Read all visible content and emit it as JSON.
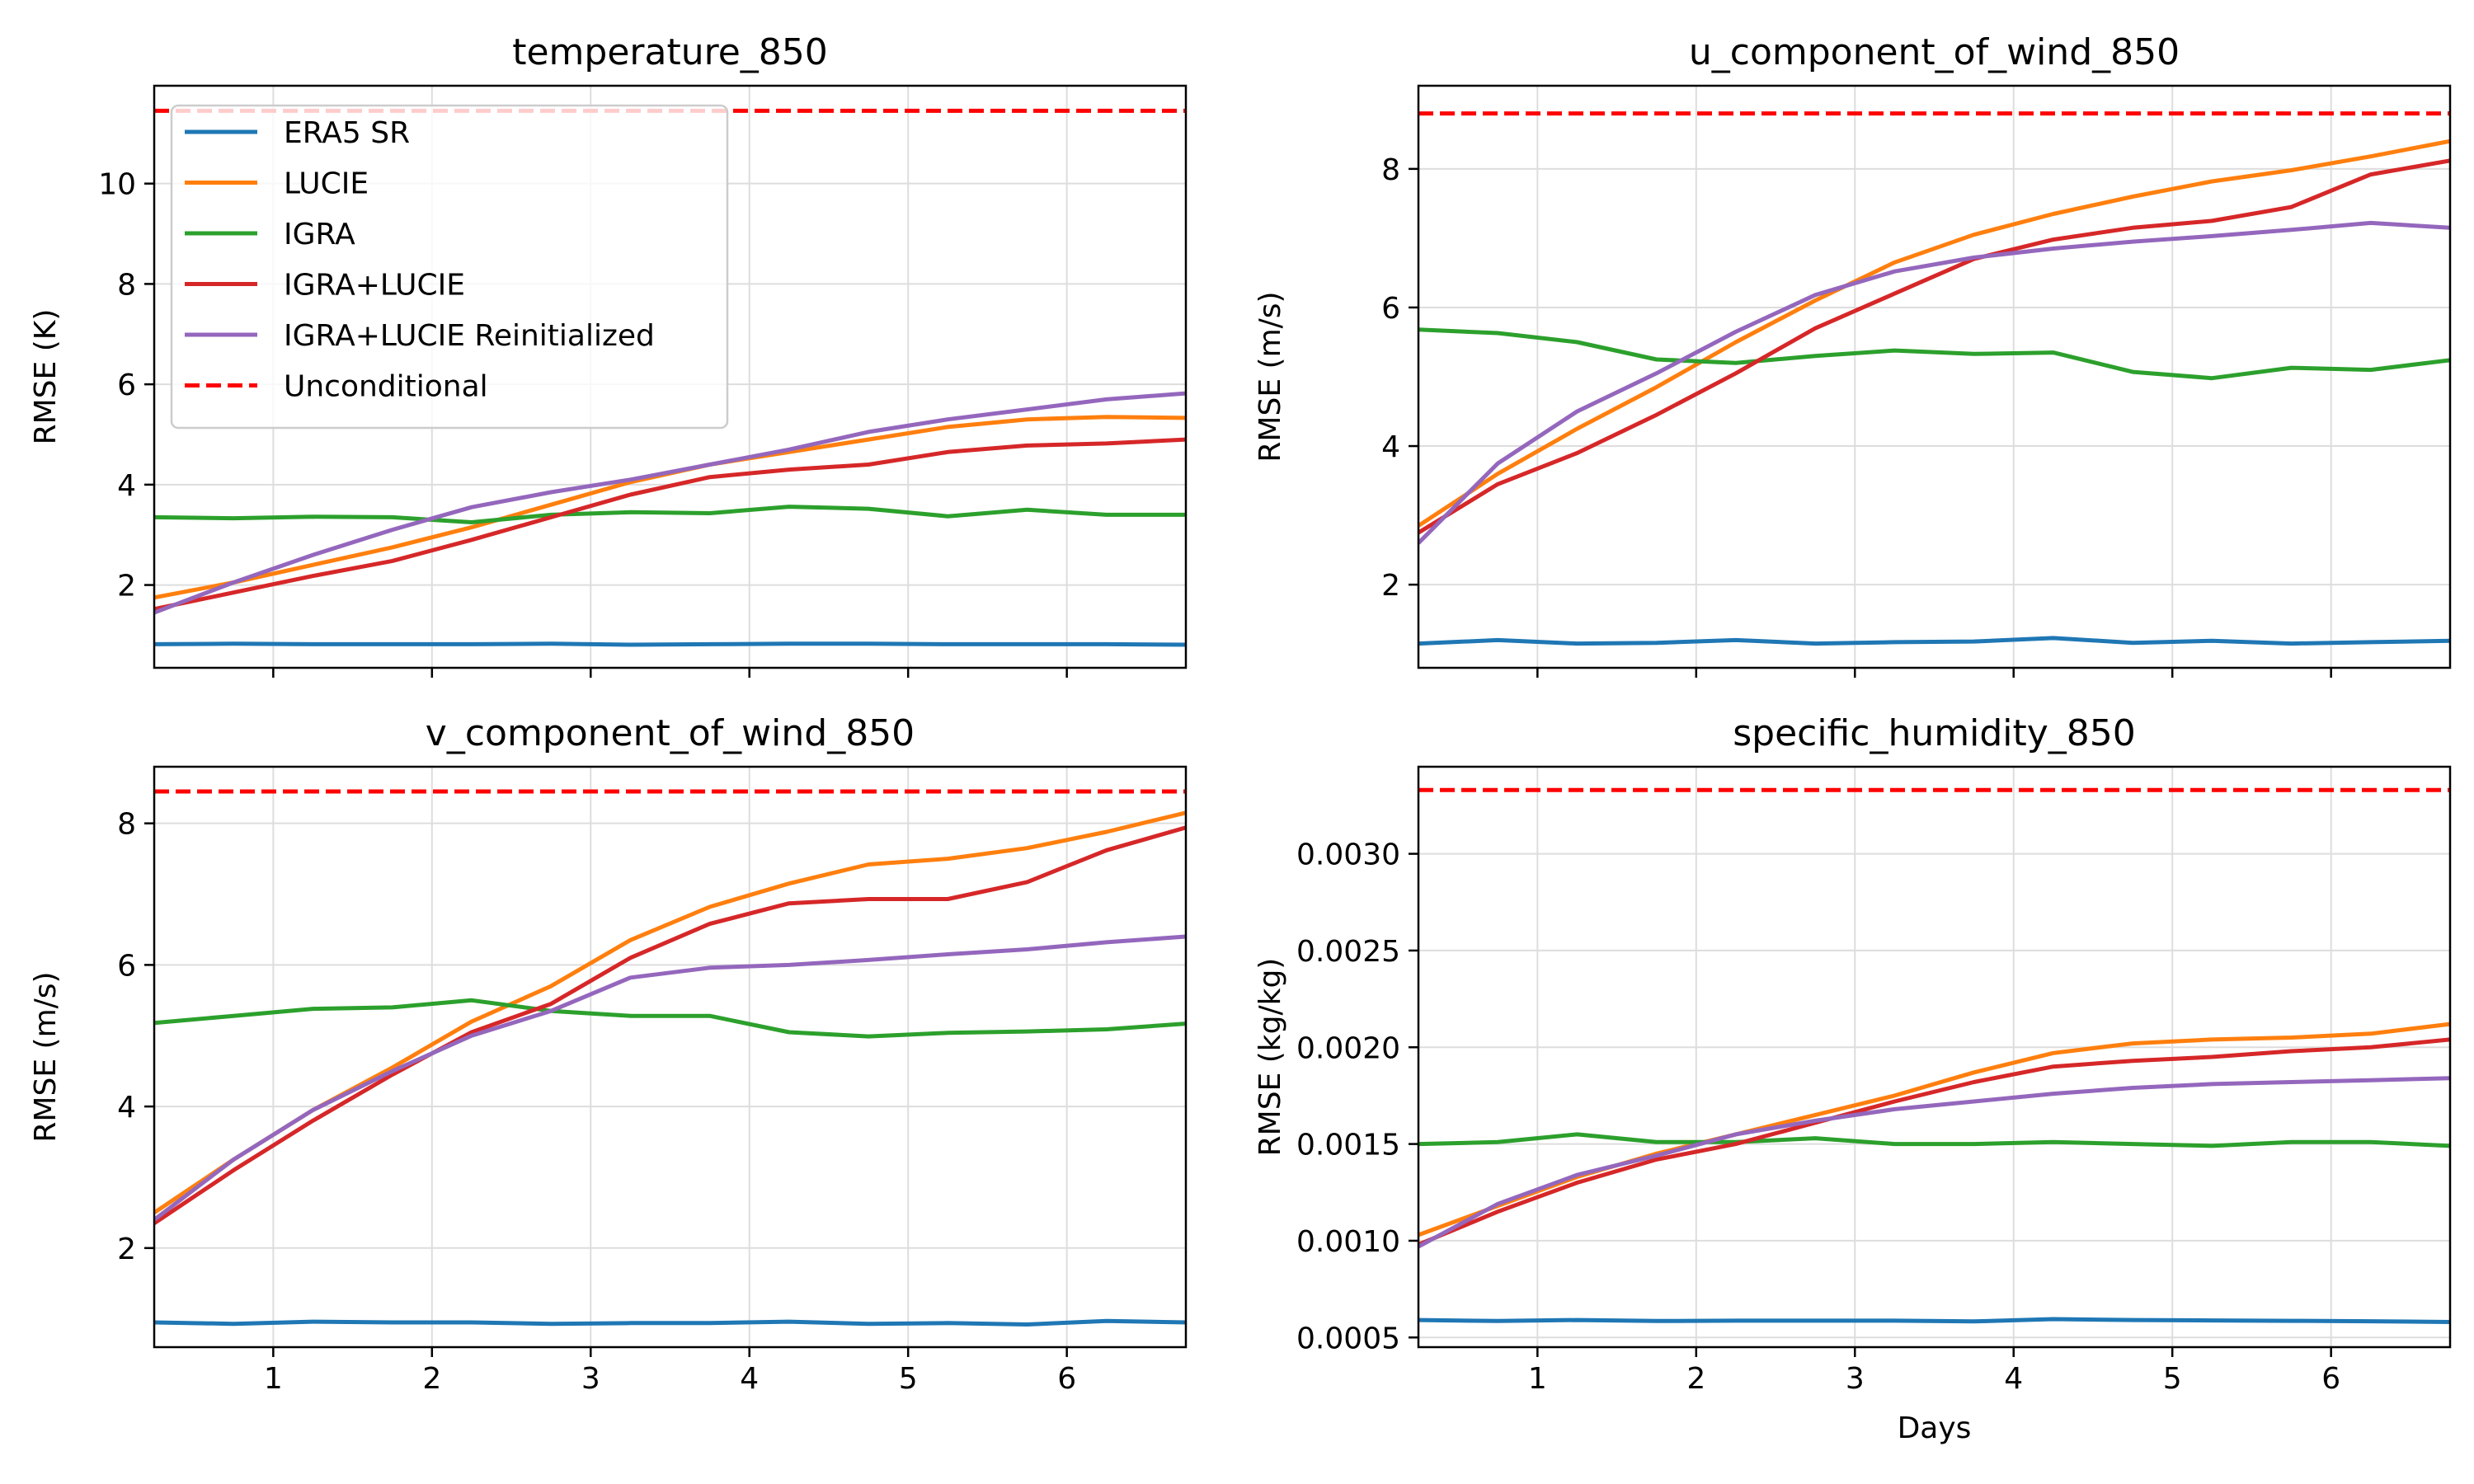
{
  "colors": {
    "ERA5 SR": "#1f77b4",
    "LUCIE": "#ff7f0e",
    "IGRA": "#2ca02c",
    "IGRA+LUCIE": "#d62728",
    "IGRA+LUCIE Reinitialized": "#9467bd",
    "Unconditional": "#ff0000"
  },
  "legend": {
    "entries": [
      "ERA5 SR",
      "LUCIE",
      "IGRA",
      "IGRA+LUCIE",
      "IGRA+LUCIE Reinitialized",
      "Unconditional"
    ]
  },
  "chart_data": [
    {
      "type": "line",
      "title": "temperature_850",
      "xlabel": "",
      "ylabel": "RMSE (K)",
      "xlim": [
        0.25,
        6.75
      ],
      "ylim": [
        0.35,
        11.95
      ],
      "xticks": [
        1,
        2,
        3,
        4,
        5,
        6
      ],
      "yticks": [
        2,
        4,
        6,
        8,
        10
      ],
      "ytick_labels": [
        "2",
        "4",
        "6",
        "8",
        "10"
      ],
      "show_xtick_labels": false,
      "x": [
        0.25,
        0.75,
        1.25,
        1.75,
        2.25,
        2.75,
        3.25,
        3.75,
        4.25,
        4.75,
        5.25,
        5.75,
        6.25,
        6.75
      ],
      "series": [
        {
          "name": "ERA5 SR",
          "values": [
            0.82,
            0.83,
            0.82,
            0.82,
            0.82,
            0.83,
            0.81,
            0.82,
            0.83,
            0.83,
            0.82,
            0.82,
            0.82,
            0.81
          ]
        },
        {
          "name": "LUCIE",
          "values": [
            1.75,
            2.05,
            2.4,
            2.75,
            3.15,
            3.6,
            4.05,
            4.4,
            4.65,
            4.9,
            5.15,
            5.3,
            5.35,
            5.33
          ]
        },
        {
          "name": "IGRA",
          "values": [
            3.35,
            3.33,
            3.36,
            3.35,
            3.25,
            3.4,
            3.45,
            3.43,
            3.56,
            3.52,
            3.37,
            3.5,
            3.4,
            3.4
          ]
        },
        {
          "name": "IGRA+LUCIE",
          "values": [
            1.52,
            1.85,
            2.18,
            2.48,
            2.9,
            3.35,
            3.8,
            4.15,
            4.3,
            4.4,
            4.65,
            4.78,
            4.82,
            4.9
          ]
        },
        {
          "name": "IGRA+LUCIE Reinitialized",
          "values": [
            1.45,
            2.05,
            2.6,
            3.1,
            3.55,
            3.85,
            4.1,
            4.4,
            4.7,
            5.05,
            5.3,
            5.5,
            5.7,
            5.82
          ]
        },
        {
          "name": "Unconditional",
          "values": [
            11.45,
            11.45
          ],
          "x": [
            0.25,
            6.75
          ],
          "dashed": true
        }
      ],
      "legend_position": "upper-left"
    },
    {
      "type": "line",
      "title": "u_component_of_wind_850",
      "xlabel": "",
      "ylabel": "RMSE (m/s)",
      "xlim": [
        0.25,
        6.75
      ],
      "ylim": [
        0.8,
        9.2
      ],
      "xticks": [
        1,
        2,
        3,
        4,
        5,
        6
      ],
      "yticks": [
        2,
        4,
        6,
        8
      ],
      "ytick_labels": [
        "2",
        "4",
        "6",
        "8"
      ],
      "show_xtick_labels": false,
      "x": [
        0.25,
        0.75,
        1.25,
        1.75,
        2.25,
        2.75,
        3.25,
        3.75,
        4.25,
        4.75,
        5.25,
        5.75,
        6.25,
        6.75
      ],
      "series": [
        {
          "name": "ERA5 SR",
          "values": [
            1.15,
            1.2,
            1.15,
            1.16,
            1.2,
            1.15,
            1.17,
            1.18,
            1.23,
            1.16,
            1.19,
            1.15,
            1.17,
            1.19
          ]
        },
        {
          "name": "LUCIE",
          "values": [
            2.85,
            3.6,
            4.25,
            4.85,
            5.5,
            6.1,
            6.65,
            7.05,
            7.35,
            7.6,
            7.82,
            7.98,
            8.18,
            8.4
          ]
        },
        {
          "name": "IGRA",
          "values": [
            5.68,
            5.63,
            5.5,
            5.25,
            5.2,
            5.3,
            5.38,
            5.33,
            5.35,
            5.07,
            4.98,
            5.13,
            5.1,
            5.24
          ]
        },
        {
          "name": "IGRA+LUCIE",
          "values": [
            2.75,
            3.45,
            3.9,
            4.45,
            5.05,
            5.7,
            6.2,
            6.7,
            6.98,
            7.15,
            7.25,
            7.45,
            7.92,
            8.12
          ]
        },
        {
          "name": "IGRA+LUCIE Reinitialized",
          "values": [
            2.6,
            3.75,
            4.5,
            5.05,
            5.65,
            6.18,
            6.52,
            6.72,
            6.85,
            6.95,
            7.03,
            7.12,
            7.22,
            7.15
          ]
        },
        {
          "name": "Unconditional",
          "values": [
            8.8,
            8.8
          ],
          "x": [
            0.25,
            6.75
          ],
          "dashed": true
        }
      ]
    },
    {
      "type": "line",
      "title": "v_component_of_wind_850",
      "xlabel": "",
      "ylabel": "RMSE (m/s)",
      "xlim": [
        0.25,
        6.75
      ],
      "ylim": [
        0.6,
        8.8
      ],
      "xticks": [
        1,
        2,
        3,
        4,
        5,
        6
      ],
      "yticks": [
        2,
        4,
        6,
        8
      ],
      "ytick_labels": [
        "2",
        "4",
        "6",
        "8"
      ],
      "show_xtick_labels": true,
      "xtick_labels": [
        "1",
        "2",
        "3",
        "4",
        "5",
        "6"
      ],
      "x": [
        0.25,
        0.75,
        1.25,
        1.75,
        2.25,
        2.75,
        3.25,
        3.75,
        4.25,
        4.75,
        5.25,
        5.75,
        6.25,
        6.75
      ],
      "series": [
        {
          "name": "ERA5 SR",
          "values": [
            0.95,
            0.93,
            0.96,
            0.95,
            0.95,
            0.93,
            0.94,
            0.94,
            0.96,
            0.93,
            0.94,
            0.92,
            0.97,
            0.95
          ]
        },
        {
          "name": "LUCIE",
          "values": [
            2.5,
            3.25,
            3.95,
            4.55,
            5.2,
            5.7,
            6.35,
            6.82,
            7.15,
            7.42,
            7.5,
            7.65,
            7.88,
            8.15
          ]
        },
        {
          "name": "IGRA",
          "values": [
            5.18,
            5.28,
            5.38,
            5.4,
            5.5,
            5.35,
            5.28,
            5.28,
            5.05,
            4.99,
            5.04,
            5.06,
            5.09,
            5.17
          ]
        },
        {
          "name": "IGRA+LUCIE",
          "values": [
            2.35,
            3.1,
            3.8,
            4.45,
            5.05,
            5.45,
            6.1,
            6.58,
            6.87,
            6.93,
            6.93,
            7.17,
            7.62,
            7.94
          ]
        },
        {
          "name": "IGRA+LUCIE Reinitialized",
          "values": [
            2.4,
            3.25,
            3.95,
            4.5,
            5.0,
            5.35,
            5.82,
            5.96,
            6.0,
            6.07,
            6.15,
            6.22,
            6.32,
            6.4
          ]
        },
        {
          "name": "Unconditional",
          "values": [
            8.45,
            8.45
          ],
          "x": [
            0.25,
            6.75
          ],
          "dashed": true
        }
      ]
    },
    {
      "type": "line",
      "title": "specific_humidity_850",
      "xlabel": "Days",
      "ylabel": "RMSE (kg/kg)",
      "xlim": [
        0.25,
        6.75
      ],
      "ylim": [
        0.00045,
        0.00345
      ],
      "xticks": [
        1,
        2,
        3,
        4,
        5,
        6
      ],
      "yticks": [
        0.0005,
        0.001,
        0.0015,
        0.002,
        0.0025,
        0.003
      ],
      "ytick_labels": [
        "0.0005",
        "0.0010",
        "0.0015",
        "0.0020",
        "0.0025",
        "0.0030"
      ],
      "show_xtick_labels": true,
      "xtick_labels": [
        "1",
        "2",
        "3",
        "4",
        "5",
        "6"
      ],
      "x": [
        0.25,
        0.75,
        1.25,
        1.75,
        2.25,
        2.75,
        3.25,
        3.75,
        4.25,
        4.75,
        5.25,
        5.75,
        6.25,
        6.75
      ],
      "series": [
        {
          "name": "ERA5 SR",
          "values": [
            0.00059,
            0.000585,
            0.00059,
            0.000585,
            0.000587,
            0.000587,
            0.000587,
            0.000583,
            0.000595,
            0.00059,
            0.000588,
            0.000586,
            0.000584,
            0.00058
          ]
        },
        {
          "name": "LUCIE",
          "values": [
            0.00103,
            0.00118,
            0.00133,
            0.00145,
            0.00155,
            0.00165,
            0.00175,
            0.00187,
            0.00197,
            0.00202,
            0.00204,
            0.00205,
            0.00207,
            0.00212
          ]
        },
        {
          "name": "IGRA",
          "values": [
            0.0015,
            0.00151,
            0.00155,
            0.00151,
            0.00151,
            0.00153,
            0.0015,
            0.0015,
            0.00151,
            0.0015,
            0.00149,
            0.00151,
            0.00151,
            0.00149
          ]
        },
        {
          "name": "IGRA+LUCIE",
          "values": [
            0.00098,
            0.00115,
            0.0013,
            0.00142,
            0.0015,
            0.00161,
            0.00172,
            0.00182,
            0.0019,
            0.00193,
            0.00195,
            0.00198,
            0.002,
            0.00204
          ]
        },
        {
          "name": "IGRA+LUCIE Reinitialized",
          "values": [
            0.00097,
            0.00119,
            0.00134,
            0.00144,
            0.00155,
            0.00162,
            0.00168,
            0.00172,
            0.00176,
            0.00179,
            0.00181,
            0.00182,
            0.00183,
            0.00184
          ]
        },
        {
          "name": "Unconditional",
          "values": [
            0.00333,
            0.00333
          ],
          "x": [
            0.25,
            6.75
          ],
          "dashed": true
        }
      ]
    }
  ]
}
